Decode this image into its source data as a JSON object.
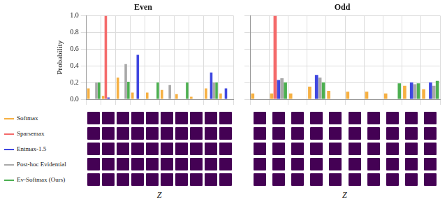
{
  "chart_data": [
    {
      "type": "bar",
      "title": "Even",
      "y_label": "Probability",
      "x_label": "Z",
      "categories": [
        null,
        null,
        null,
        null,
        null,
        null,
        null,
        null,
        null,
        null
      ],
      "series": [
        {
          "name": "Softmax",
          "color": "#f6b042",
          "values": [
            0.13,
            0.04,
            0.26,
            0.08,
            0.08,
            0.11,
            0.06,
            0.03,
            0.13,
            0.07
          ]
        },
        {
          "name": "Sparsemax",
          "color": "#f46a6a",
          "values": [
            0,
            1.0,
            0,
            0,
            0,
            0,
            0,
            0,
            0,
            0
          ]
        },
        {
          "name": "Entmax-1.5",
          "color": "#3f47e0",
          "values": [
            0,
            0.02,
            0,
            0.53,
            0,
            0,
            0,
            0,
            0.32,
            0.13
          ]
        },
        {
          "name": "Post-hoc Evidential",
          "color": "#a9a9a9",
          "values": [
            0.2,
            0,
            0.42,
            0,
            0,
            0.17,
            0,
            0,
            0.2,
            0
          ]
        },
        {
          "name": "Ev-Softmax (Ours)",
          "color": "#4caf50",
          "values": [
            0.2,
            0,
            0.21,
            0,
            0.2,
            0,
            0.2,
            0,
            0.2,
            0
          ]
        }
      ],
      "ylim": [
        0,
        1
      ],
      "yticks": [
        {
          "value": 0,
          "label": "0.0"
        },
        {
          "value": 0.2,
          "label": "0.2"
        },
        {
          "value": 0.4,
          "label": "0.4"
        },
        {
          "value": 0.6,
          "label": "0.6"
        },
        {
          "value": 0.8,
          "label": "0.8"
        },
        {
          "value": 1,
          "label": "1.0"
        }
      ],
      "grid": true,
      "tick_labels": "y",
      "legend": "left"
    },
    {
      "type": "bar",
      "title": "Odd",
      "x_label": "Z",
      "categories": [
        null,
        null,
        null,
        null,
        null,
        null,
        null,
        null,
        null,
        null
      ],
      "series": [
        {
          "name": "Softmax",
          "color": "#f6b042",
          "values": [
            0.07,
            0.07,
            0.07,
            0.15,
            0.1,
            0.09,
            0.09,
            0.07,
            0.16,
            0.12
          ]
        },
        {
          "name": "Sparsemax",
          "color": "#f46a6a",
          "values": [
            0,
            1.0,
            0,
            0,
            0,
            0,
            0,
            0,
            0,
            0
          ]
        },
        {
          "name": "Entmax-1.5",
          "color": "#3f47e0",
          "values": [
            0,
            0.23,
            0,
            0.29,
            0,
            0,
            0,
            0,
            0.2,
            0.2
          ]
        },
        {
          "name": "Post-hoc Evidential",
          "color": "#a9a9a9",
          "values": [
            0,
            0.25,
            0,
            0.26,
            0,
            0,
            0,
            0,
            0.18,
            0.16
          ]
        },
        {
          "name": "Ev-Softmax (Ours)",
          "color": "#4caf50",
          "values": [
            0,
            0.2,
            0,
            0.2,
            0,
            0,
            0,
            0.19,
            0.19,
            0.22
          ]
        }
      ],
      "ylim": [
        0,
        1
      ],
      "yticks": [
        {
          "value": 0,
          "label": "0.0"
        },
        {
          "value": 0.2,
          "label": "0.2"
        },
        {
          "value": 0.4,
          "label": "0.4"
        },
        {
          "value": 0.6,
          "label": "0.6"
        },
        {
          "value": 0.8,
          "label": "0.8"
        },
        {
          "value": 1,
          "label": "1.0"
        }
      ],
      "grid": true,
      "tick_labels": false
    }
  ]
}
